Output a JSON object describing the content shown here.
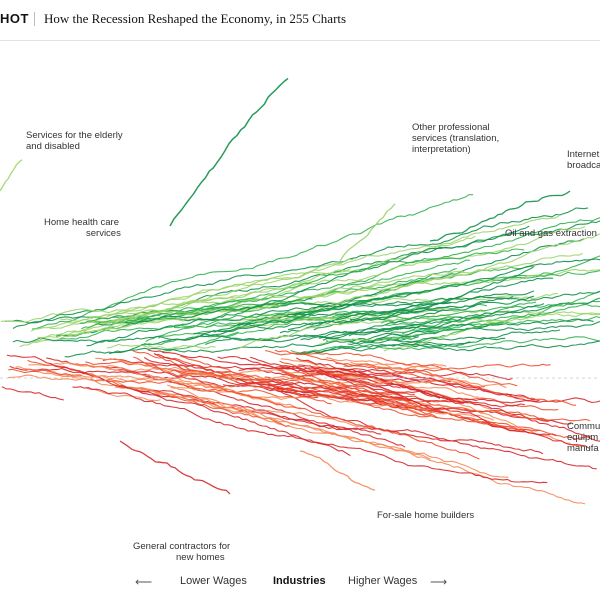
{
  "header": {
    "brand": "HOT",
    "headline": "How the Recession Reshaped the Economy, in 255 Charts"
  },
  "labels": {
    "elderly_1": "Services for the elderly",
    "elderly_2": "and disabled",
    "home_health_1": "Home health care",
    "home_health_2": "services",
    "other_prof_1": "Other professional",
    "other_prof_2": "services (translation,",
    "other_prof_3": "interpretation)",
    "internet_1": "Internet",
    "internet_2": "broadca",
    "oil_gas": "Oil and gas extraction",
    "comm_1": "Commu",
    "comm_2": "equipm",
    "comm_3": "manufa",
    "forsale": "For-sale home builders",
    "general_1": "General contractors for",
    "general_2": "new homes"
  },
  "axis": {
    "lower": "Lower Wages",
    "middle": "Industries",
    "higher": "Higher Wages",
    "left_arrow": "⟵",
    "right_arrow": "⟶"
  },
  "colors": {
    "green_dark": "#11904a",
    "green_mid": "#33b350",
    "green_light": "#9bd46a",
    "red_dark": "#d7262a",
    "red_mid": "#f0502e",
    "orange": "#f58a5a"
  }
}
